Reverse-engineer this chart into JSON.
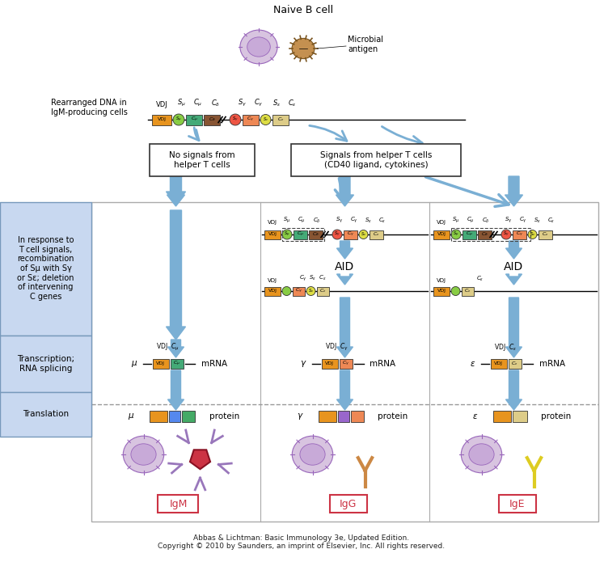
{
  "title_top": "Naive B cell",
  "microbial_antigen": "Microbial\nantigen",
  "rearranged_dna_label": "Rearranged DNA in\nIgM-producing cells",
  "box1_title": "No signals from\nhelper T cells",
  "box2_title": "Signals from helper T cells\n(CD40 ligand, cytokines)",
  "left_label1": "In response to\nT cell signals,\nrecombination\nof Sμ with Sγ\nor Sε; deletion\nof intervening\nC genes",
  "left_label2": "Transcription;\nRNA splicing",
  "left_label3": "Translation",
  "col1_mrna": "μ mRNA",
  "col2_mrna": "γ mRNA",
  "col3_mrna": "ε mRNA",
  "col1_protein": "μ protein",
  "col2_protein": "γ protein",
  "col3_protein": "ε protein",
  "igm_label": "IgM",
  "igg_label": "IgG",
  "ige_label": "IgE",
  "aid_label": "AID",
  "copyright": "Abbas & Lichtman: Basic Immunology 3e, Updated Edition.\nCopyright © 2010 by Saunders, an imprint of Elsevier, Inc. All rights reserved.",
  "bg_color": "#ffffff",
  "arrow_color": "#7aafd4",
  "dna_colors": {
    "VDJ": "#e8941e",
    "S_mu": "#88cc44",
    "C_mu": "#44aa77",
    "C_delta": "#885533",
    "S_gamma": "#ee5544",
    "C_gamma": "#ee8855",
    "S_epsilon": "#dddd44",
    "C_epsilon": "#ddcc88"
  },
  "label_bg": "#c8d8f0",
  "label_border": "#7799bb"
}
